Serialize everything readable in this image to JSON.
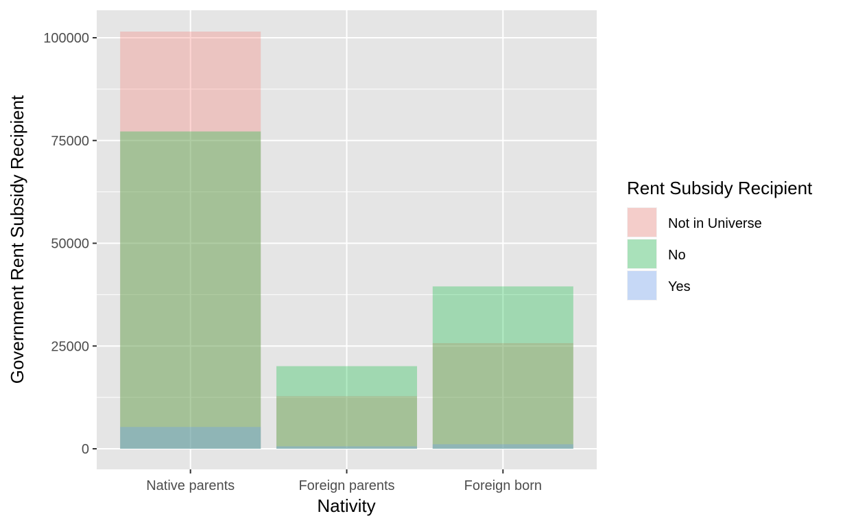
{
  "chart_data": {
    "type": "bar",
    "position": "identity-overlap",
    "categories": [
      "Native parents",
      "Foreign parents",
      "Foreign born"
    ],
    "series": [
      {
        "name": "Not in Universe",
        "values": [
          101500,
          12800,
          25700
        ],
        "color": "#F8766D"
      },
      {
        "name": "No",
        "values": [
          77200,
          20100,
          39500
        ],
        "color": "#00BA38"
      },
      {
        "name": "Yes",
        "values": [
          5300,
          600,
          1100
        ],
        "color": "#619CFF"
      }
    ],
    "bar_alpha": 0.3,
    "xlabel": "Nativity",
    "ylabel": "Government Rent Subsidy Recipient",
    "ylim": [
      -5000,
      106500
    ],
    "yticks": [
      0,
      25000,
      50000,
      75000,
      100000
    ],
    "ytick_labels": [
      "0",
      "25000",
      "50000",
      "75000",
      "100000"
    ],
    "legend_title": "Rent Subsidy Recipient",
    "legend_position": "right",
    "grid": true,
    "panel_background": "#E5E5E5",
    "grid_color": "#FFFFFF"
  }
}
